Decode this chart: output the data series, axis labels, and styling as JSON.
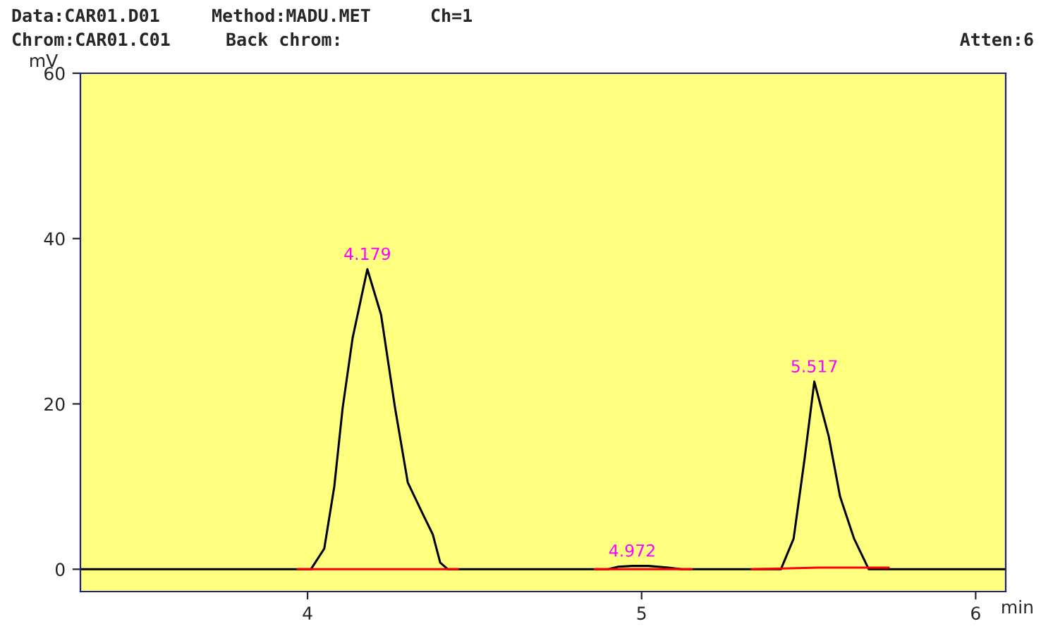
{
  "chart_data": {
    "type": "line",
    "xlabel": "min",
    "ylabel": "mV",
    "annotations": [
      "Data:CAR01.D01",
      "Method:MADU.MET",
      "Ch=1",
      "Chrom:CAR01.C01",
      "Back chrom:",
      "Atten:6",
      {
        "text": "4.179",
        "x": 4.179,
        "y": 36.3
      },
      {
        "text": "4.972",
        "x": 4.972,
        "y": 0.4
      },
      {
        "text": "5.517",
        "x": 5.517,
        "y": 22.7
      }
    ],
    "series": [
      {
        "color": "#000000",
        "x": [
          3.32,
          4.01,
          4.05,
          4.08,
          4.105,
          4.135,
          4.179,
          4.22,
          4.262,
          4.3,
          4.346,
          4.375,
          4.397,
          4.42,
          4.9,
          4.93,
          4.972,
          5.02,
          5.08,
          5.12,
          5.417,
          5.455,
          5.488,
          5.517,
          5.56,
          5.594,
          5.636,
          5.68,
          6.09
        ],
        "values": [
          0,
          0,
          2.5,
          10,
          19.5,
          28,
          36.3,
          30.8,
          19.5,
          10.5,
          6.6,
          4.2,
          0.8,
          0,
          0,
          0.3,
          0.4,
          0.4,
          0.2,
          0,
          0,
          3.7,
          13.4,
          22.7,
          16.1,
          8.8,
          3.7,
          0,
          0
        ]
      },
      {
        "color": "#ff0000",
        "x": [
          3.97,
          4.45,
          4.46,
          4.86,
          5.15,
          5.16,
          5.33,
          5.53,
          5.74
        ],
        "values": [
          0,
          0,
          null,
          0,
          0,
          null,
          0,
          0.2,
          0.2
        ]
      }
    ],
    "xlim": [
      3.32,
      6.09
    ],
    "ylim": [
      -2.7,
      60
    ],
    "xticks": [
      4,
      5,
      6
    ],
    "yticks": [
      0,
      20,
      40,
      60
    ],
    "grid": false
  }
}
